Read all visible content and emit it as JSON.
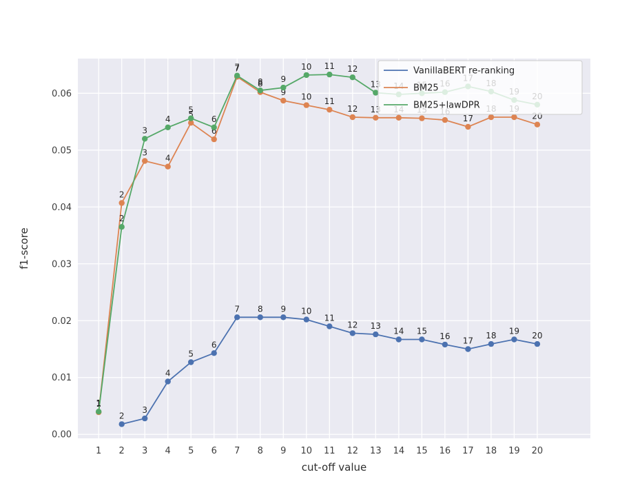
{
  "chart_data": {
    "type": "line",
    "title": "",
    "xlabel": "cut-off value",
    "ylabel": "f1-score",
    "x": [
      1,
      2,
      3,
      4,
      5,
      6,
      7,
      8,
      9,
      10,
      11,
      12,
      13,
      14,
      15,
      16,
      17,
      18,
      19,
      20
    ],
    "xticks": [
      1,
      2,
      3,
      4,
      5,
      6,
      7,
      8,
      9,
      10,
      11,
      12,
      13,
      14,
      15,
      16,
      17,
      18,
      19,
      20
    ],
    "yticks": [
      0,
      0.01,
      0.02,
      0.03,
      0.04,
      0.05,
      0.06
    ],
    "ytick_labels": [
      "0.00",
      "0.01",
      "0.02",
      "0.03",
      "0.04",
      "0.05",
      "0.06"
    ],
    "xlim": [
      0.1,
      22.3
    ],
    "ylim": [
      -0.0007,
      0.0661
    ],
    "grid": true,
    "point_labels": "each marker annotated with its x (cut-off) value",
    "legend_position": "upper right",
    "plot_bg": "#eaeaf2",
    "grid_color": "#ffffff",
    "text_color": "#262626",
    "tick_color": "#3d3d3d",
    "series": [
      {
        "name": "VanillaBERT re-ranking",
        "color": "#4c72b0",
        "values": [
          null,
          0.0018,
          0.0028,
          0.0093,
          0.0127,
          0.0143,
          0.0206,
          0.0206,
          0.0206,
          0.0202,
          0.019,
          0.0178,
          0.0176,
          0.0167,
          0.0167,
          0.0158,
          0.015,
          0.0159,
          0.0167,
          0.0159
        ]
      },
      {
        "name": "BM25",
        "color": "#dd8452",
        "values": [
          0.0039,
          0.0407,
          0.0481,
          0.0471,
          0.0548,
          0.0519,
          0.0629,
          0.0602,
          0.0587,
          0.0579,
          0.0571,
          0.0558,
          0.0557,
          0.0557,
          0.0556,
          0.0553,
          0.0541,
          0.0558,
          0.0558,
          0.0545
        ]
      },
      {
        "name": "BM25+lawDPR",
        "color": "#55a868",
        "values": [
          0.004,
          0.0365,
          0.052,
          0.054,
          0.0556,
          0.054,
          0.0631,
          0.0605,
          0.061,
          0.0632,
          0.0633,
          0.0628,
          0.0601,
          0.0598,
          0.06,
          0.0602,
          0.0612,
          0.0603,
          0.0588,
          0.058
        ]
      }
    ]
  }
}
